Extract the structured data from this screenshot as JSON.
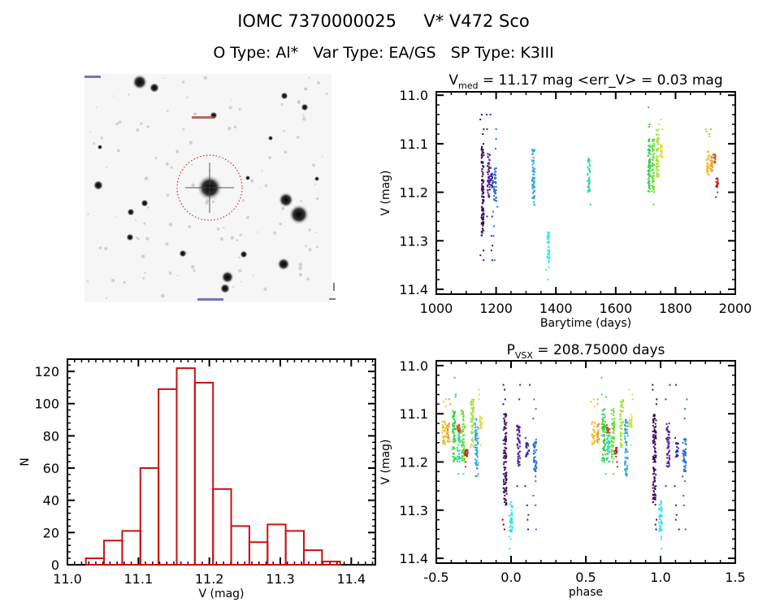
{
  "header": {
    "object_line": "IOMC 7370000025     V* V472 Sco",
    "type_line": "O Type: Al*   Var Type: EA/GS   SP Type: K3III"
  },
  "chart_data": [
    {
      "type": "image",
      "description_kind": "sky-finding-chart",
      "marker_color": "#cc0000"
    },
    {
      "type": "scatter",
      "title_main": "V",
      "title_sub": "med",
      "title_rest": " = 11.17 mag <err_V> = 0.03 mag",
      "xlabel": "Barytime (days)",
      "ylabel": "V (mag)",
      "xlim": [
        1000,
        2000
      ],
      "ylim": [
        11.41,
        10.99
      ],
      "y_inverted": true,
      "xticks": [
        "1000",
        "1200",
        "1400",
        "1600",
        "1800",
        "2000"
      ],
      "yticks": [
        "11.0",
        "11.1",
        "11.2",
        "11.3",
        "11.4"
      ],
      "groups": [
        {
          "t": 1155,
          "phase": -0.04,
          "color": "#3c0a5c",
          "dense": [
            11.1,
            11.29
          ],
          "sparse": [
            11.04,
            11.05,
            11.07,
            11.08,
            11.18,
            11.2,
            11.32,
            11.33,
            11.34
          ]
        },
        {
          "t": 1175,
          "phase": 0.05,
          "color": "#5020a0",
          "dense": [
            11.12,
            11.21
          ],
          "sparse": [
            11.04,
            11.07,
            11.25
          ]
        },
        {
          "t": 1186,
          "phase": 0.11,
          "color": "#2828a0",
          "dense": [
            11.16,
            11.19
          ],
          "sparse": [
            11.04,
            11.15,
            11.25,
            11.29,
            11.31,
            11.32,
            11.34
          ]
        },
        {
          "t": 1197,
          "phase": 0.16,
          "color": "#2870d8",
          "dense": [
            11.15,
            11.22
          ],
          "sparse": [
            11.07,
            11.09,
            11.11,
            11.23,
            11.24,
            11.27,
            11.29,
            11.34
          ]
        },
        {
          "t": 1325,
          "phase": -0.23,
          "color": "#30a8e0",
          "dense": [
            11.11,
            11.23
          ],
          "sparse": []
        },
        {
          "t": 1375,
          "phase": 0.0,
          "color": "#30e8e8",
          "dense": [
            11.28,
            11.345
          ],
          "sparse": [
            11.355,
            11.36,
            11.38
          ]
        },
        {
          "t": 1510,
          "phase": -0.35,
          "color": "#30d8a8",
          "dense": [
            11.13,
            11.2
          ],
          "sparse": [
            11.225
          ]
        },
        {
          "t": 1712,
          "phase": -0.38,
          "color": "#30d040",
          "dense": [
            11.09,
            11.2
          ],
          "sparse": [
            11.025,
            11.06,
            11.065
          ]
        },
        {
          "t": 1725,
          "phase": -0.32,
          "color": "#60e030",
          "dense": [
            11.09,
            11.2
          ],
          "sparse": [
            11.225
          ]
        },
        {
          "t": 1740,
          "phase": -0.26,
          "color": "#a8e040",
          "dense": [
            11.07,
            11.17
          ],
          "sparse": []
        },
        {
          "t": 1752,
          "phase": -0.2,
          "color": "#d8e040",
          "dense": [
            11.1,
            11.13
          ],
          "sparse": [
            11.05,
            11.06,
            11.07,
            11.165
          ]
        },
        {
          "t": 1908,
          "phase": -0.45,
          "color": "#f0c030",
          "dense": [
            11.115,
            11.165
          ],
          "sparse": [
            11.07,
            11.075,
            11.085
          ]
        },
        {
          "t": 1920,
          "phase": -0.42,
          "color": "#e8a030",
          "dense": [
            11.12,
            11.16
          ],
          "sparse": [
            11.07,
            11.08
          ]
        },
        {
          "t": 1930,
          "phase": -0.35,
          "color": "#d05020",
          "dense": [
            11.12,
            11.14
          ],
          "sparse": []
        },
        {
          "t": 1940,
          "phase": -0.3,
          "color": "#c02020",
          "dense": [
            11.17,
            11.19
          ],
          "sparse": [
            11.2,
            11.21
          ]
        }
      ]
    },
    {
      "type": "bar",
      "subtype": "histogram",
      "xlabel": "V (mag)",
      "ylabel": "N",
      "xlim": [
        11.0,
        11.434
      ],
      "ylim": [
        0,
        127.6
      ],
      "xticks": [
        "11.0",
        "11.1",
        "11.2",
        "11.3",
        "11.4"
      ],
      "yticks": [
        "0",
        "20",
        "40",
        "60",
        "80",
        "100",
        "120"
      ],
      "bin_start": 11.026,
      "bin_width": 0.0256,
      "values": [
        4,
        15,
        21,
        60,
        109,
        122,
        113,
        47,
        24,
        14,
        25,
        21,
        9,
        2
      ],
      "color": "#cc1010"
    },
    {
      "type": "scatter",
      "title_main": "P",
      "title_sub": "VSX",
      "title_rest": " = 208.75000 days",
      "xlabel": "phase",
      "ylabel": "V (mag)",
      "xlim": [
        -0.5,
        1.5
      ],
      "ylim": [
        11.41,
        10.99
      ],
      "y_inverted": true,
      "xticks": [
        "-0.5",
        "0.0",
        "0.5",
        "1.0",
        "1.5"
      ],
      "yticks": [
        "11.0",
        "11.1",
        "11.2",
        "11.3",
        "11.4"
      ],
      "phase_repeated": true
    }
  ]
}
